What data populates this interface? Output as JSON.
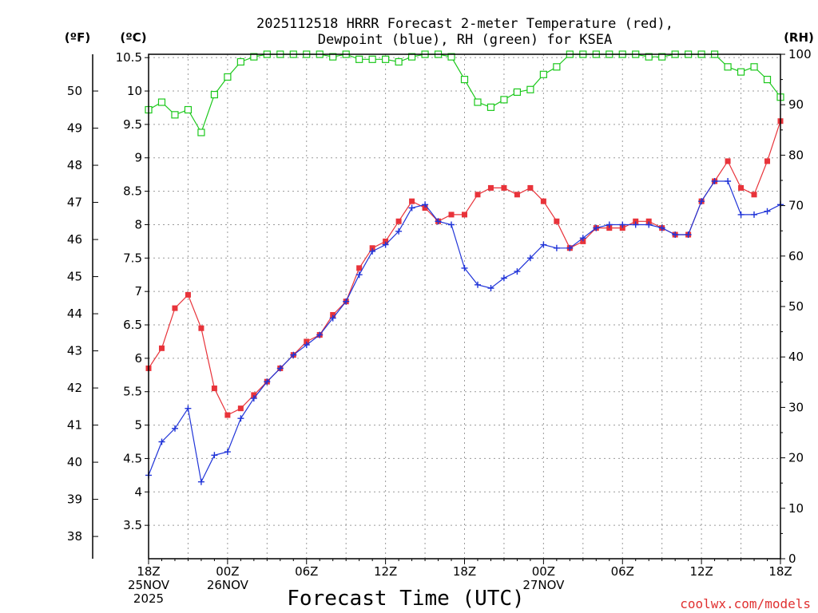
{
  "chart_data": {
    "type": "line",
    "title": [
      "2025112518 HRRR Forecast 2-meter Temperature (red),",
      "Dewpoint (blue), RH (green) for KSEA"
    ],
    "xlabel": "Forecast Time (UTC)",
    "credit": "coolwx.com/models",
    "units": {
      "f": "(ºF)",
      "c": "(ºC)",
      "rh": "(RH)"
    },
    "forecast_hours": [
      0,
      1,
      2,
      3,
      4,
      5,
      6,
      7,
      8,
      9,
      10,
      11,
      12,
      13,
      14,
      15,
      16,
      17,
      18,
      19,
      20,
      21,
      22,
      23,
      24,
      25,
      26,
      27,
      28,
      29,
      30,
      31,
      32,
      33,
      34,
      35,
      36,
      37,
      38,
      39,
      40,
      41,
      42,
      43,
      44,
      45,
      46,
      47,
      48
    ],
    "xlim": [
      0,
      48
    ],
    "x_ticks": [
      {
        "hour": 0,
        "lines": [
          "18Z",
          "25NOV",
          "2025"
        ]
      },
      {
        "hour": 6,
        "lines": [
          "00Z",
          "26NOV"
        ]
      },
      {
        "hour": 12,
        "lines": [
          "06Z"
        ]
      },
      {
        "hour": 18,
        "lines": [
          "12Z"
        ]
      },
      {
        "hour": 24,
        "lines": [
          "18Z"
        ]
      },
      {
        "hour": 30,
        "lines": [
          "00Z",
          "27NOV"
        ]
      },
      {
        "hour": 36,
        "lines": [
          "06Z"
        ]
      },
      {
        "hour": 42,
        "lines": [
          "12Z"
        ]
      },
      {
        "hour": 48,
        "lines": [
          "18Z"
        ]
      }
    ],
    "y_celsius": {
      "ylim": [
        3.0,
        10.55
      ],
      "ticks": [
        "3.5",
        "4",
        "4.5",
        "5",
        "5.5",
        "6",
        "6.5",
        "7",
        "7.5",
        "8",
        "8.5",
        "9",
        "9.5",
        "10",
        "10.5"
      ]
    },
    "y_fahrenheit": {
      "ticks": [
        "38",
        "39",
        "40",
        "41",
        "42",
        "43",
        "44",
        "45",
        "46",
        "47",
        "48",
        "49",
        "50"
      ]
    },
    "y_rh": {
      "ylim": [
        0,
        100
      ],
      "ticks": [
        "0",
        "10",
        "20",
        "30",
        "40",
        "50",
        "60",
        "70",
        "80",
        "90",
        "100"
      ]
    },
    "series": [
      {
        "name": "Temperature",
        "axis": "celsius",
        "color": "#e8333a",
        "marker": "filled-square",
        "values": [
          5.85,
          6.15,
          6.75,
          6.95,
          6.45,
          5.55,
          5.15,
          5.25,
          5.45,
          5.65,
          5.85,
          6.05,
          6.25,
          6.35,
          6.65,
          6.85,
          7.35,
          7.65,
          7.75,
          8.05,
          8.35,
          8.25,
          8.05,
          8.15,
          8.15,
          8.45,
          8.55,
          8.55,
          8.45,
          8.55,
          8.35,
          8.05,
          7.65,
          7.75,
          7.95,
          7.95,
          7.95,
          8.05,
          8.05,
          7.95,
          7.85,
          7.85,
          8.35,
          8.65,
          8.95,
          8.55,
          8.45,
          8.95,
          9.55
        ]
      },
      {
        "name": "Dewpoint",
        "axis": "celsius",
        "color": "#2034d8",
        "marker": "plus",
        "values": [
          4.25,
          4.75,
          4.95,
          5.25,
          4.15,
          4.55,
          4.6,
          5.1,
          5.4,
          5.65,
          5.85,
          6.05,
          6.2,
          6.35,
          6.6,
          6.85,
          7.25,
          7.6,
          7.7,
          7.9,
          8.25,
          8.3,
          8.05,
          8.0,
          7.35,
          7.1,
          7.05,
          7.2,
          7.3,
          7.5,
          7.7,
          7.65,
          7.65,
          7.8,
          7.95,
          8.0,
          8.0,
          8.0,
          8.0,
          7.95,
          7.85,
          7.85,
          8.35,
          8.65,
          8.65,
          8.15,
          8.15,
          8.2,
          8.3
        ]
      },
      {
        "name": "RH",
        "axis": "rh",
        "color": "#1cc81c",
        "marker": "open-square",
        "values": [
          89,
          90.5,
          88,
          89,
          84.5,
          92,
          95.5,
          98.5,
          99.5,
          100,
          100,
          100,
          100,
          100,
          99.5,
          100,
          99,
          99,
          99,
          98.5,
          99.5,
          100,
          100,
          99.5,
          95,
          90.5,
          89.5,
          91,
          92.5,
          93,
          96,
          97.5,
          100,
          100,
          100,
          100,
          100,
          100,
          99.5,
          99.5,
          100,
          100,
          100,
          100,
          97.5,
          96.5,
          97.5,
          95,
          91.5
        ]
      }
    ]
  }
}
